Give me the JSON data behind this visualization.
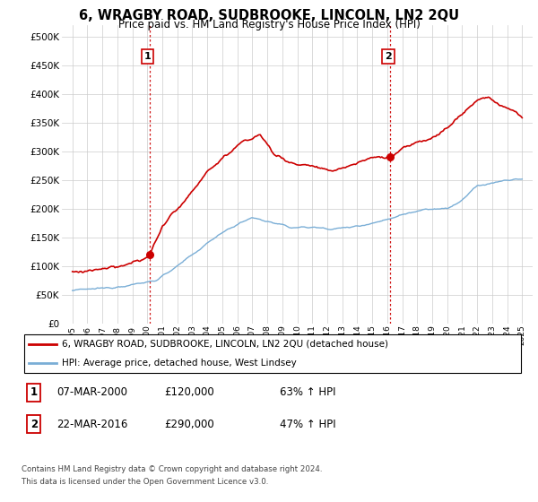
{
  "title": "6, WRAGBY ROAD, SUDBROOKE, LINCOLN, LN2 2QU",
  "subtitle": "Price paid vs. HM Land Registry's House Price Index (HPI)",
  "legend_line1": "6, WRAGBY ROAD, SUDBROOKE, LINCOLN, LN2 2QU (detached house)",
  "legend_line2": "HPI: Average price, detached house, West Lindsey",
  "transactions": [
    {
      "id": 1,
      "date": "07-MAR-2000",
      "price": "£120,000",
      "pct": "63% ↑ HPI"
    },
    {
      "id": 2,
      "date": "22-MAR-2016",
      "price": "£290,000",
      "pct": "47% ↑ HPI"
    }
  ],
  "footnote1": "Contains HM Land Registry data © Crown copyright and database right 2024.",
  "footnote2": "This data is licensed under the Open Government Licence v3.0.",
  "red_line_color": "#cc0000",
  "blue_line_color": "#7aaed6",
  "marker_color": "#cc0000",
  "vline_color": "#cc0000",
  "grid_color": "#cccccc",
  "bg_color": "#ffffff",
  "ylim": [
    0,
    520000
  ],
  "yticks": [
    0,
    50000,
    100000,
    150000,
    200000,
    250000,
    300000,
    350000,
    400000,
    450000,
    500000
  ],
  "transaction1_year": 2000.17,
  "transaction2_year": 2016.22,
  "transaction1_price": 120000,
  "transaction2_price": 290000,
  "hpi_anchors_t": [
    1995.0,
    1996.0,
    1997.5,
    1999.0,
    2000.5,
    2002.0,
    2003.5,
    2005.0,
    2007.0,
    2008.5,
    2009.5,
    2011.0,
    2012.5,
    2014.0,
    2015.5,
    2017.0,
    2018.5,
    2020.0,
    2021.0,
    2022.0,
    2023.0,
    2024.0,
    2025.0
  ],
  "hpi_anchors_v": [
    58000,
    60000,
    63000,
    68000,
    75000,
    100000,
    130000,
    160000,
    185000,
    175000,
    168000,
    168000,
    165000,
    170000,
    178000,
    190000,
    200000,
    200000,
    215000,
    240000,
    245000,
    250000,
    252000
  ],
  "red_anchors_t": [
    1995.0,
    1997.0,
    1998.5,
    2000.17,
    2001.0,
    2002.5,
    2004.0,
    2006.0,
    2007.5,
    2008.5,
    2009.5,
    2011.0,
    2012.0,
    2013.5,
    2015.0,
    2016.22,
    2017.0,
    2018.0,
    2019.5,
    2021.0,
    2022.0,
    2022.8,
    2023.5,
    2024.5,
    2025.0
  ],
  "red_anchors_v": [
    90000,
    95000,
    100000,
    120000,
    170000,
    215000,
    265000,
    310000,
    330000,
    295000,
    280000,
    275000,
    265000,
    275000,
    290000,
    290000,
    305000,
    315000,
    330000,
    365000,
    390000,
    395000,
    380000,
    370000,
    360000
  ]
}
